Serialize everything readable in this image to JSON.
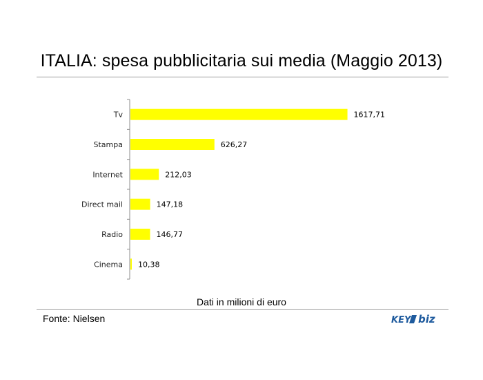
{
  "chart_data": {
    "type": "bar",
    "orientation": "horizontal",
    "title": "ITALIA: spesa pubblicitaria sui media (Maggio 2013)",
    "categories": [
      "Tv",
      "Stampa",
      "Internet",
      "Direct mail",
      "Radio",
      "Cinema"
    ],
    "values": [
      1617.71,
      626.27,
      212.03,
      147.18,
      146.77,
      10.38
    ],
    "value_labels": [
      "1617,71",
      "626,27",
      "212,03",
      "147,18",
      "146,77",
      "10,38"
    ],
    "xlim": [
      0,
      1800
    ],
    "bar_color": "#ffff00",
    "grid": false,
    "legend": "none",
    "note": "Dati in milioni di euro"
  },
  "source": "Fonte: Nielsen",
  "logo": {
    "text_key": "KEY",
    "text_biz": "biz",
    "color": "#1f5b9e"
  }
}
